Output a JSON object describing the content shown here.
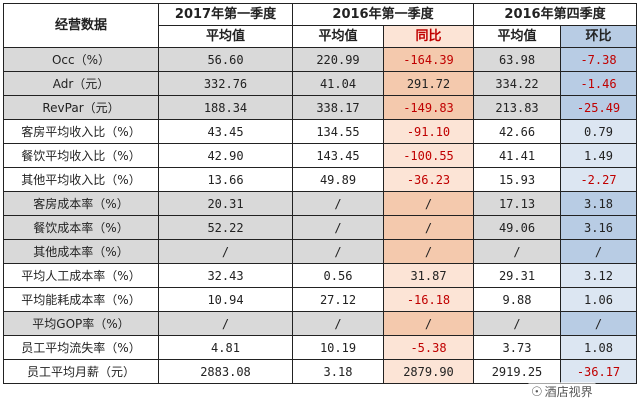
{
  "header": {
    "title": "经营数据",
    "periods": [
      "2017年第一季度",
      "2016年第一季度",
      "2016年第四季度"
    ],
    "sub": [
      "平均值",
      "平均值",
      "同比",
      "平均值",
      "环比"
    ]
  },
  "rows": [
    {
      "label": "Occ（%）",
      "v2017": "56.60",
      "v2016q1": "220.99",
      "yoy": "-164.39",
      "v2016q4": "63.98",
      "qoq": "-7.38",
      "shade": true
    },
    {
      "label": "Adr（元）",
      "v2017": "332.76",
      "v2016q1": "41.04",
      "yoy": "291.72",
      "v2016q4": "334.22",
      "qoq": "-1.46",
      "shade": true
    },
    {
      "label": "RevPar（元）",
      "v2017": "188.34",
      "v2016q1": "338.17",
      "yoy": "-149.83",
      "v2016q4": "213.83",
      "qoq": "-25.49",
      "shade": true
    },
    {
      "label": "客房平均收入比（%）",
      "v2017": "43.45",
      "v2016q1": "134.55",
      "yoy": "-91.10",
      "v2016q4": "42.66",
      "qoq": "0.79",
      "shade": false
    },
    {
      "label": "餐饮平均收入比（%）",
      "v2017": "42.90",
      "v2016q1": "143.45",
      "yoy": "-100.55",
      "v2016q4": "41.41",
      "qoq": "1.49",
      "shade": false
    },
    {
      "label": "其他平均收入比（%）",
      "v2017": "13.66",
      "v2016q1": "49.89",
      "yoy": "-36.23",
      "v2016q4": "15.93",
      "qoq": "-2.27",
      "shade": false
    },
    {
      "label": "客房成本率（%）",
      "v2017": "20.31",
      "v2016q1": "/",
      "yoy": "/",
      "v2016q4": "17.13",
      "qoq": "3.18",
      "shade": true
    },
    {
      "label": "餐饮成本率（%）",
      "v2017": "52.22",
      "v2016q1": "/",
      "yoy": "/",
      "v2016q4": "49.06",
      "qoq": "3.16",
      "shade": true
    },
    {
      "label": "其他成本率（%）",
      "v2017": "/",
      "v2016q1": "/",
      "yoy": "/",
      "v2016q4": "/",
      "qoq": "/",
      "shade": true
    },
    {
      "label": "平均人工成本率（%）",
      "v2017": "32.43",
      "v2016q1": "0.56",
      "yoy": "31.87",
      "v2016q4": "29.31",
      "qoq": "3.12",
      "shade": false
    },
    {
      "label": "平均能耗成本率（%）",
      "v2017": "10.94",
      "v2016q1": "27.12",
      "yoy": "-16.18",
      "v2016q4": "9.88",
      "qoq": "1.06",
      "shade": false
    },
    {
      "label": "平均GOP率（%）",
      "v2017": "/",
      "v2016q1": "/",
      "yoy": "/",
      "v2016q4": "/",
      "qoq": "/",
      "shade": true
    },
    {
      "label": "员工平均流失率（%）",
      "v2017": "4.81",
      "v2016q1": "10.19",
      "yoy": "-5.38",
      "v2016q4": "3.73",
      "qoq": "1.08",
      "shade": false
    },
    {
      "label": "员工平均月薪（元）",
      "v2017": "2883.08",
      "v2016q1": "3.18",
      "yoy": "2879.90",
      "v2016q4": "2919.25",
      "qoq": "-36.17",
      "shade": false
    }
  ],
  "watermark": {
    "icon": "wechat-icon",
    "text": "酒店视界"
  },
  "colors": {
    "negative": "#c00000",
    "shade": "#d9d9d9",
    "yoy_bg": "#fce4d6",
    "qoq_bg": "#b8cce4",
    "qoq_light": "#dce6f2"
  }
}
